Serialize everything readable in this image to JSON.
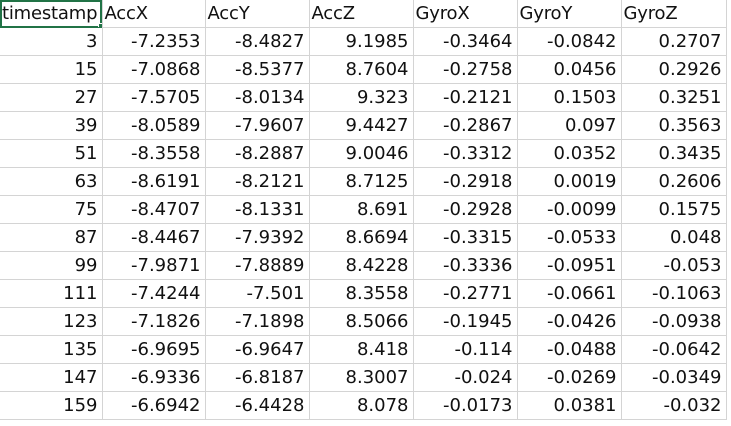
{
  "sheet": {
    "headers": [
      "timestamp",
      "AccX",
      "AccY",
      "AccZ",
      "GyroX",
      "GyroY",
      "GyroZ"
    ],
    "rows": [
      [
        "3",
        "-7.2353",
        "-8.4827",
        "9.1985",
        "-0.3464",
        "-0.0842",
        "0.2707"
      ],
      [
        "15",
        "-7.0868",
        "-8.5377",
        "8.7604",
        "-0.2758",
        "0.0456",
        "0.2926"
      ],
      [
        "27",
        "-7.5705",
        "-8.0134",
        "9.323",
        "-0.2121",
        "0.1503",
        "0.3251"
      ],
      [
        "39",
        "-8.0589",
        "-7.9607",
        "9.4427",
        "-0.2867",
        "0.097",
        "0.3563"
      ],
      [
        "51",
        "-8.3558",
        "-8.2887",
        "9.0046",
        "-0.3312",
        "0.0352",
        "0.3435"
      ],
      [
        "63",
        "-8.6191",
        "-8.2121",
        "8.7125",
        "-0.2918",
        "0.0019",
        "0.2606"
      ],
      [
        "75",
        "-8.4707",
        "-8.1331",
        "8.691",
        "-0.2928",
        "-0.0099",
        "0.1575"
      ],
      [
        "87",
        "-8.4467",
        "-7.9392",
        "8.6694",
        "-0.3315",
        "-0.0533",
        "0.048"
      ],
      [
        "99",
        "-7.9871",
        "-7.8889",
        "8.4228",
        "-0.3336",
        "-0.0951",
        "-0.053"
      ],
      [
        "111",
        "-7.4244",
        "-7.501",
        "8.3558",
        "-0.2771",
        "-0.0661",
        "-0.1063"
      ],
      [
        "123",
        "-7.1826",
        "-7.1898",
        "8.5066",
        "-0.1945",
        "-0.0426",
        "-0.0938"
      ],
      [
        "135",
        "-6.9695",
        "-6.9647",
        "8.418",
        "-0.114",
        "-0.0488",
        "-0.0642"
      ],
      [
        "147",
        "-6.9336",
        "-6.8187",
        "8.3007",
        "-0.024",
        "-0.0269",
        "-0.0349"
      ],
      [
        "159",
        "-6.6942",
        "-6.4428",
        "8.078",
        "-0.0173",
        "0.0381",
        "-0.032"
      ]
    ]
  },
  "colors": {
    "gridline": "#d4d4d4",
    "selection": "#217346",
    "text": "#111111",
    "background": "#ffffff"
  }
}
